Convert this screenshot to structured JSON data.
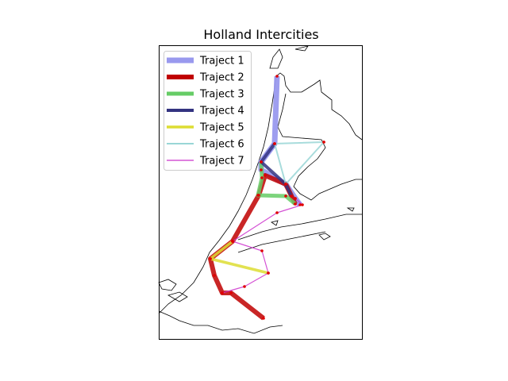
{
  "title": "Holland Intercities",
  "chart_data": {
    "type": "line",
    "title": "Holland Intercities",
    "series": [
      {
        "name": "Traject 1",
        "color": "#9999ee",
        "stations": [
          [
            349,
            96
          ],
          [
            346,
            181
          ],
          [
            329,
            204
          ],
          [
            329,
            214
          ],
          [
            360,
            232
          ],
          [
            372,
            250
          ],
          [
            378,
            258
          ]
        ]
      },
      {
        "name": "Traject 2",
        "color": "#c00000",
        "stations": [
          [
            332,
            401
          ],
          [
            291,
            369
          ],
          [
            280,
            369
          ],
          [
            270,
            347
          ],
          [
            265,
            326
          ],
          [
            293,
            304
          ],
          [
            326,
            246
          ],
          [
            334,
            221
          ],
          [
            360,
            232
          ],
          [
            372,
            257
          ]
        ]
      },
      {
        "name": "Traject 3",
        "color": "#66cc66",
        "stations": [
          [
            329,
            204
          ],
          [
            330,
            224
          ],
          [
            325,
            246
          ],
          [
            360,
            247
          ],
          [
            372,
            257
          ]
        ]
      },
      {
        "name": "Traject 4",
        "color": "#333380",
        "stations": [
          [
            346,
            181
          ],
          [
            329,
            204
          ],
          [
            360,
            232
          ],
          [
            367,
            247
          ]
        ]
      },
      {
        "name": "Traject 5",
        "color": "#dddd33",
        "stations": [
          [
            293,
            304
          ],
          [
            265,
            326
          ],
          [
            338,
            344
          ]
        ]
      },
      {
        "name": "Traject 6",
        "color": "#99d6d6",
        "stations": [
          [
            408,
            179
          ],
          [
            346,
            181
          ],
          [
            360,
            232
          ],
          [
            408,
            179
          ]
        ]
      },
      {
        "name": "Traject 7",
        "color": "#cc33cc",
        "stations": [
          [
            372,
            250
          ],
          [
            381,
            258
          ],
          [
            349,
            268
          ],
          [
            293,
            304
          ],
          [
            330,
            316
          ],
          [
            338,
            344
          ],
          [
            308,
            361
          ],
          [
            280,
            369
          ]
        ]
      }
    ],
    "legend_position": "upper-left"
  }
}
